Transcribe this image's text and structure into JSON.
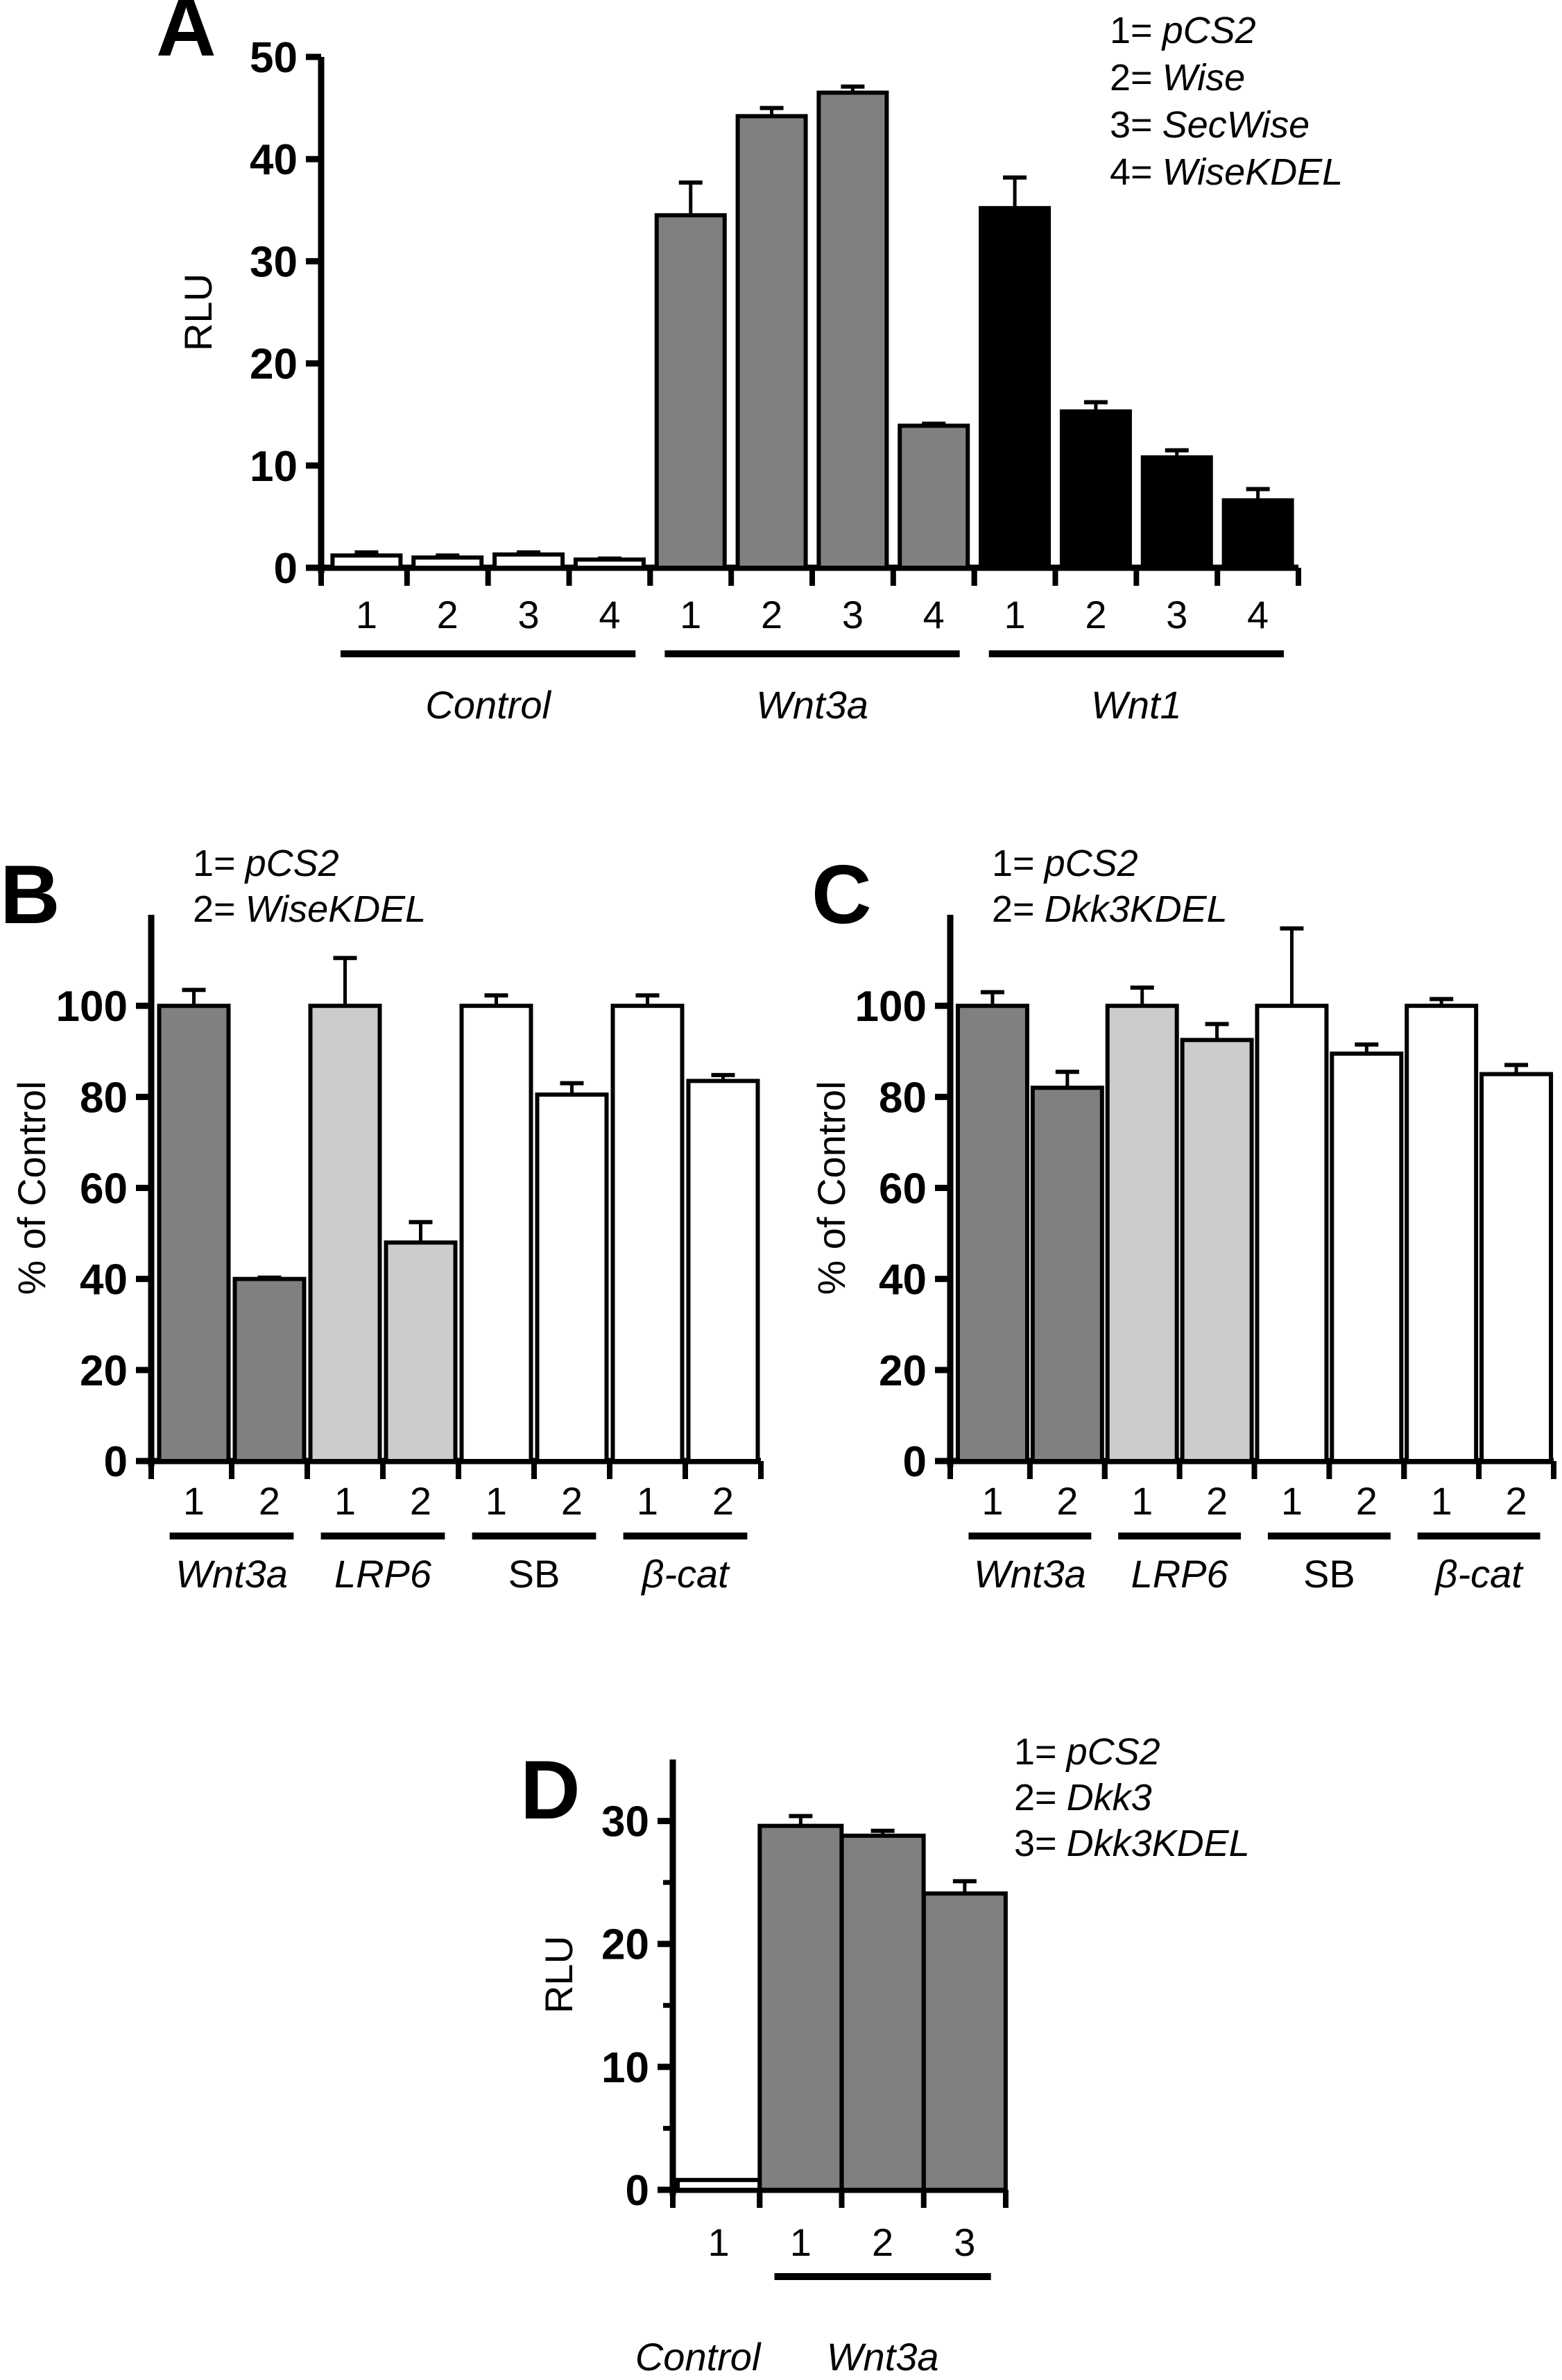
{
  "chart_data": [
    {
      "id": "A",
      "type": "bar",
      "panel_label": "A",
      "ylabel": "RLU",
      "xlabel": "",
      "ylim": [
        0,
        50
      ],
      "yticks": [
        0,
        10,
        20,
        30,
        40,
        50
      ],
      "legend": [
        {
          "key": "1=",
          "label": "pCS2"
        },
        {
          "key": "2=",
          "label": "Wise"
        },
        {
          "key": "3=",
          "label": "SecWise"
        },
        {
          "key": "4=",
          "label": "WiseKDEL"
        }
      ],
      "legend_position": "top-right",
      "groups": [
        {
          "name": "Control",
          "italic": true,
          "color": "#ffffff",
          "categories": [
            "1",
            "2",
            "3",
            "4"
          ],
          "values": [
            1.2,
            1.0,
            1.3,
            0.8
          ],
          "errors": [
            0.3,
            0.2,
            0.2,
            0.1
          ]
        },
        {
          "name": "Wnt3a",
          "italic": true,
          "color": "#808080",
          "categories": [
            "1",
            "2",
            "3",
            "4"
          ],
          "values": [
            34.5,
            44.2,
            46.5,
            13.9
          ],
          "errors": [
            3.2,
            0.8,
            0.6,
            0.2
          ]
        },
        {
          "name": "Wnt1",
          "italic": true,
          "color": "#000000",
          "categories": [
            "1",
            "2",
            "3",
            "4"
          ],
          "values": [
            35.2,
            15.3,
            10.8,
            6.6
          ],
          "errors": [
            3.0,
            0.9,
            0.7,
            1.1
          ]
        }
      ]
    },
    {
      "id": "B",
      "type": "bar",
      "panel_label": "B",
      "ylabel": "% of Control",
      "xlabel": "",
      "ylim": [
        0,
        120
      ],
      "yticks": [
        0,
        20,
        40,
        60,
        80,
        100
      ],
      "legend": [
        {
          "key": "1=",
          "label": "pCS2"
        },
        {
          "key": "2=",
          "label": "WiseKDEL"
        }
      ],
      "legend_position": "top-left",
      "groups": [
        {
          "name": "Wnt3a",
          "italic": true,
          "color": "#808080",
          "categories": [
            "1",
            "2"
          ],
          "values": [
            100,
            40
          ],
          "errors": [
            3.5,
            0.3
          ]
        },
        {
          "name": "LRP6",
          "italic": true,
          "color": "#cccccc",
          "categories": [
            "1",
            "2"
          ],
          "values": [
            100,
            48
          ],
          "errors": [
            10.5,
            4.5
          ]
        },
        {
          "name": "SB",
          "italic": false,
          "color": "#ffffff",
          "categories": [
            "1",
            "2"
          ],
          "values": [
            100,
            80.5
          ],
          "errors": [
            2.3,
            2.5
          ]
        },
        {
          "name": "β-cat",
          "italic": true,
          "color": "#ffffff",
          "categories": [
            "1",
            "2"
          ],
          "values": [
            100,
            83.5
          ],
          "errors": [
            2.3,
            1.3
          ]
        }
      ]
    },
    {
      "id": "C",
      "type": "bar",
      "panel_label": "C",
      "ylabel": "% of Control",
      "xlabel": "",
      "ylim": [
        0,
        120
      ],
      "yticks": [
        0,
        20,
        40,
        60,
        80,
        100
      ],
      "legend": [
        {
          "key": "1=",
          "label": "pCS2"
        },
        {
          "key": "2=",
          "label": "Dkk3KDEL"
        }
      ],
      "legend_position": "top-left",
      "groups": [
        {
          "name": "Wnt3a",
          "italic": true,
          "color": "#808080",
          "categories": [
            "1",
            "2"
          ],
          "values": [
            100,
            82
          ],
          "errors": [
            3.0,
            3.5
          ]
        },
        {
          "name": "LRP6",
          "italic": true,
          "color": "#cccccc",
          "categories": [
            "1",
            "2"
          ],
          "values": [
            100,
            92.5
          ],
          "errors": [
            4.0,
            3.5
          ]
        },
        {
          "name": "SB",
          "italic": false,
          "color": "#ffffff",
          "categories": [
            "1",
            "2"
          ],
          "values": [
            100,
            89.5
          ],
          "errors": [
            17.0,
            2.0
          ]
        },
        {
          "name": "β-cat",
          "italic": true,
          "color": "#ffffff",
          "categories": [
            "1",
            "2"
          ],
          "values": [
            100,
            85
          ],
          "errors": [
            1.5,
            2.0
          ]
        }
      ]
    },
    {
      "id": "D",
      "type": "bar",
      "panel_label": "D",
      "ylabel": "RLU",
      "xlabel": "",
      "ylim": [
        0,
        35
      ],
      "yticks": [
        0,
        10,
        20,
        30
      ],
      "minor_yticks": [
        5,
        15,
        25
      ],
      "legend": [
        {
          "key": "1=",
          "label": "pCS2"
        },
        {
          "key": "2=",
          "label": "Dkk3"
        },
        {
          "key": "3=",
          "label": "Dkk3KDEL"
        }
      ],
      "legend_position": "top-right",
      "groups": [
        {
          "name": "Control",
          "italic": true,
          "color": "#ffffff",
          "categories": [
            "1"
          ],
          "values": [
            0.8
          ],
          "errors": [
            0
          ],
          "underline": false
        },
        {
          "name": "Wnt3a",
          "italic": true,
          "color": "#808080",
          "categories": [
            "1",
            "2",
            "3"
          ],
          "values": [
            29.6,
            28.8,
            24.1
          ],
          "errors": [
            0.8,
            0.4,
            1.0
          ],
          "underline": true
        }
      ]
    }
  ]
}
